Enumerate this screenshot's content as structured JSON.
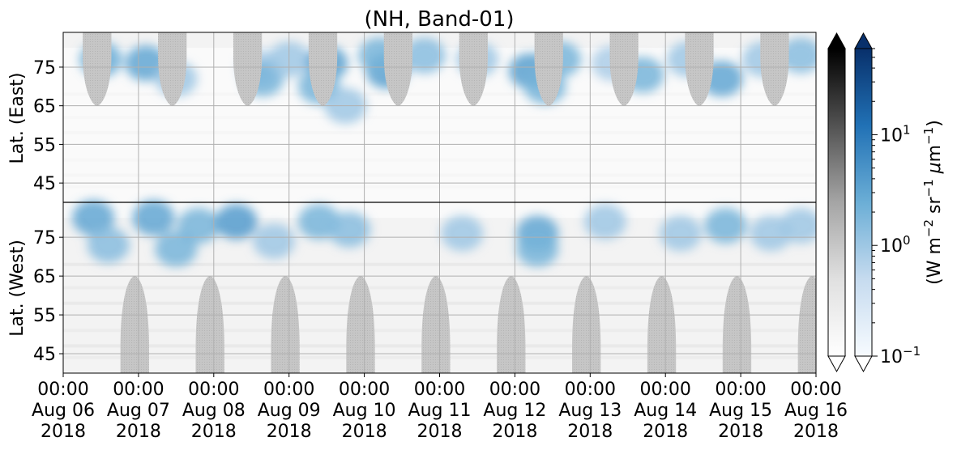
{
  "chart_data": {
    "type": "heatmap",
    "title": "(NH, Band-01)",
    "panels": [
      {
        "name": "east",
        "ylabel": "Lat. (East)",
        "ylim": [
          40,
          84
        ],
        "yticks": [
          45,
          55,
          65,
          75
        ],
        "y_inverted": false
      },
      {
        "name": "west",
        "ylabel": "Lat. (West)",
        "ylim": [
          40,
          84
        ],
        "yticks": [
          45,
          55,
          65,
          75
        ],
        "y_inverted": true
      }
    ],
    "x": {
      "start": "2018-08-06 00:00",
      "end": "2018-08-16 00:00",
      "ticks": [
        {
          "time": "00:00",
          "date": "Aug 06",
          "year": "2018"
        },
        {
          "time": "00:00",
          "date": "Aug 07",
          "year": "2018"
        },
        {
          "time": "00:00",
          "date": "Aug 08",
          "year": "2018"
        },
        {
          "time": "00:00",
          "date": "Aug 09",
          "year": "2018"
        },
        {
          "time": "00:00",
          "date": "Aug 10",
          "year": "2018"
        },
        {
          "time": "00:00",
          "date": "Aug 11",
          "year": "2018"
        },
        {
          "time": "00:00",
          "date": "Aug 12",
          "year": "2018"
        },
        {
          "time": "00:00",
          "date": "Aug 13",
          "year": "2018"
        },
        {
          "time": "00:00",
          "date": "Aug 14",
          "year": "2018"
        },
        {
          "time": "00:00",
          "date": "Aug 15",
          "year": "2018"
        },
        {
          "time": "00:00",
          "date": "Aug 16",
          "year": "2018"
        }
      ]
    },
    "grid": true,
    "no_data_masks": {
      "east_centers_day": [
        0.45,
        1.45,
        2.45,
        3.45,
        4.45,
        5.45,
        6.45,
        7.45,
        8.45,
        9.45
      ],
      "west_centers_day": [
        0.95,
        1.95,
        2.95,
        3.95,
        4.95,
        5.95,
        6.95,
        7.95,
        8.95,
        9.95
      ],
      "lat_edge": 65,
      "color": "#c4c4c4"
    },
    "emission_blobs": [
      {
        "panel": "east",
        "day": 0.5,
        "lat": 77,
        "value": 2.5
      },
      {
        "panel": "east",
        "day": 1.1,
        "lat": 76,
        "value": 3.0
      },
      {
        "panel": "east",
        "day": 1.5,
        "lat": 72,
        "value": 1.0
      },
      {
        "panel": "east",
        "day": 2.6,
        "lat": 75,
        "value": 0.8
      },
      {
        "panel": "east",
        "day": 2.65,
        "lat": 72,
        "value": 2.0
      },
      {
        "panel": "east",
        "day": 3.0,
        "lat": 77,
        "value": 1.0
      },
      {
        "panel": "east",
        "day": 3.5,
        "lat": 76,
        "value": 3.5
      },
      {
        "panel": "east",
        "day": 3.4,
        "lat": 70,
        "value": 2.0
      },
      {
        "panel": "east",
        "day": 4.3,
        "lat": 74,
        "value": 3.5
      },
      {
        "panel": "east",
        "day": 4.2,
        "lat": 78,
        "value": 2.0
      },
      {
        "panel": "east",
        "day": 3.75,
        "lat": 65,
        "value": 1.0
      },
      {
        "panel": "east",
        "day": 4.8,
        "lat": 78,
        "value": 1.5
      },
      {
        "panel": "east",
        "day": 5.5,
        "lat": 77,
        "value": 1.0
      },
      {
        "panel": "east",
        "day": 6.2,
        "lat": 74,
        "value": 3.5
      },
      {
        "panel": "east",
        "day": 6.4,
        "lat": 70,
        "value": 2.0
      },
      {
        "panel": "east",
        "day": 6.6,
        "lat": 77,
        "value": 2.0
      },
      {
        "panel": "east",
        "day": 7.3,
        "lat": 76,
        "value": 0.8
      },
      {
        "panel": "east",
        "day": 7.7,
        "lat": 73,
        "value": 2.0
      },
      {
        "panel": "east",
        "day": 8.3,
        "lat": 77,
        "value": 1.0
      },
      {
        "panel": "east",
        "day": 8.75,
        "lat": 72,
        "value": 3.0
      },
      {
        "panel": "east",
        "day": 9.3,
        "lat": 77,
        "value": 1.0
      },
      {
        "panel": "east",
        "day": 9.8,
        "lat": 78,
        "value": 1.5
      },
      {
        "panel": "west",
        "day": 0.4,
        "lat": 80,
        "value": 3.0
      },
      {
        "panel": "west",
        "day": 0.6,
        "lat": 73,
        "value": 1.5
      },
      {
        "panel": "west",
        "day": 1.2,
        "lat": 80,
        "value": 3.0
      },
      {
        "panel": "west",
        "day": 1.8,
        "lat": 78,
        "value": 2.0
      },
      {
        "panel": "west",
        "day": 1.5,
        "lat": 72,
        "value": 2.0
      },
      {
        "panel": "west",
        "day": 2.3,
        "lat": 79,
        "value": 4.0
      },
      {
        "panel": "west",
        "day": 2.8,
        "lat": 74,
        "value": 1.0
      },
      {
        "panel": "west",
        "day": 3.4,
        "lat": 79,
        "value": 2.0
      },
      {
        "panel": "west",
        "day": 3.8,
        "lat": 77,
        "value": 1.5
      },
      {
        "panel": "west",
        "day": 5.3,
        "lat": 76,
        "value": 1.0
      },
      {
        "panel": "west",
        "day": 6.3,
        "lat": 76,
        "value": 3.0
      },
      {
        "panel": "west",
        "day": 6.3,
        "lat": 72,
        "value": 2.0
      },
      {
        "panel": "west",
        "day": 7.2,
        "lat": 79,
        "value": 1.0
      },
      {
        "panel": "west",
        "day": 8.2,
        "lat": 76,
        "value": 1.0
      },
      {
        "panel": "west",
        "day": 8.8,
        "lat": 78,
        "value": 2.0
      },
      {
        "panel": "west",
        "day": 9.4,
        "lat": 76,
        "value": 1.0
      },
      {
        "panel": "west",
        "day": 9.8,
        "lat": 78,
        "value": 1.0
      }
    ],
    "colorbars": [
      {
        "name": "grayscale",
        "cmap": "Greys",
        "extend": "both",
        "ticks": []
      },
      {
        "name": "blues",
        "cmap": "Blues",
        "extend": "both",
        "scale": "log",
        "range": [
          0.1,
          60
        ],
        "ticks": [
          {
            "base": "10",
            "exp": "1",
            "value": 10
          },
          {
            "base": "10",
            "exp": "0",
            "value": 1
          },
          {
            "base": "10",
            "exp": "−1",
            "value": 0.1
          }
        ]
      }
    ],
    "colorbar_label": {
      "prefix": "(W m",
      "exp1": "−2",
      "mid1": " sr",
      "exp2": "−1",
      "mid2": " ",
      "mu": "μ",
      "mid3": "m",
      "exp3": "−1",
      "suffix": ")"
    }
  }
}
